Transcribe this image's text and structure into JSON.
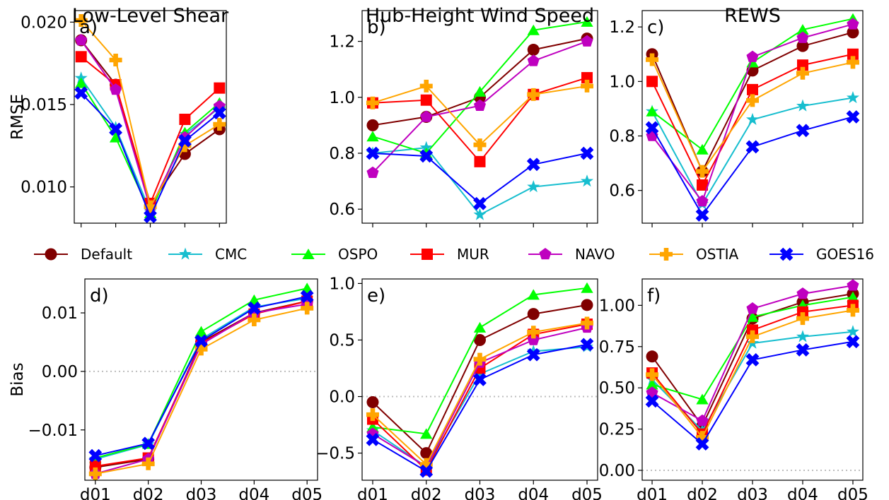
{
  "legend": {
    "placement": "center, between rows",
    "entries": [
      "Default",
      "CMC",
      "OSPO",
      "MUR",
      "NAVO",
      "OSTIA",
      "GOES16"
    ]
  },
  "series_style": [
    {
      "name": "Default",
      "color": "#800000",
      "marker": "circle"
    },
    {
      "name": "CMC",
      "color": "#17becf",
      "marker": "star"
    },
    {
      "name": "OSPO",
      "color": "#00ff00",
      "marker": "triangle"
    },
    {
      "name": "MUR",
      "color": "#ff0000",
      "marker": "square"
    },
    {
      "name": "NAVO",
      "color": "#bf00bf",
      "marker": "pentagon"
    },
    {
      "name": "OSTIA",
      "color": "#ffa500",
      "marker": "plus"
    },
    {
      "name": "GOES16",
      "color": "#0000ff",
      "marker": "x"
    }
  ],
  "chart_data": [
    {
      "id": "a",
      "type": "line",
      "title": "Low-Level Shear",
      "panel_label": "a)",
      "ylabel": "RMSE",
      "xlabel": "",
      "categories": [
        "d01",
        "d02",
        "d03",
        "d04",
        "d05"
      ],
      "ylim": [
        0.0078,
        0.0207
      ],
      "yticks": [
        0.01,
        0.015,
        0.02
      ],
      "ytick_labels": [
        "0.010",
        "0.015",
        "0.020"
      ],
      "show_x_ticklabels": false,
      "zero_line": false,
      "series": [
        {
          "name": "Default",
          "values": [
            0.0189,
            0.0162,
            0.0089,
            0.012,
            0.0135
          ]
        },
        {
          "name": "CMC",
          "values": [
            0.0166,
            0.0136,
            0.0085,
            0.0132,
            0.0148
          ]
        },
        {
          "name": "OSPO",
          "values": [
            0.0163,
            0.013,
            0.0084,
            0.0133,
            0.0151
          ]
        },
        {
          "name": "MUR",
          "values": [
            0.0179,
            0.0162,
            0.009,
            0.0141,
            0.016
          ]
        },
        {
          "name": "NAVO",
          "values": [
            0.0189,
            0.0159,
            0.0087,
            0.013,
            0.0149
          ]
        },
        {
          "name": "OSTIA",
          "values": [
            0.0201,
            0.0177,
            0.0088,
            0.0125,
            0.0138
          ]
        },
        {
          "name": "GOES16",
          "values": [
            0.0157,
            0.0135,
            0.0082,
            0.0128,
            0.0145
          ]
        }
      ]
    },
    {
      "id": "b",
      "type": "line",
      "title": "Hub-Height Wind Speed",
      "panel_label": "b)",
      "ylabel": "",
      "xlabel": "",
      "categories": [
        "d01",
        "d02",
        "d03",
        "d04",
        "d05"
      ],
      "ylim": [
        0.55,
        1.31
      ],
      "yticks": [
        0.6,
        0.8,
        1.0,
        1.2
      ],
      "ytick_labels": [
        "0.6",
        "0.8",
        "1.0",
        "1.2"
      ],
      "show_x_ticklabels": false,
      "zero_line": false,
      "series": [
        {
          "name": "Default",
          "values": [
            0.9,
            0.93,
            1.0,
            1.17,
            1.21
          ]
        },
        {
          "name": "CMC",
          "values": [
            0.8,
            0.82,
            0.58,
            0.68,
            0.7
          ]
        },
        {
          "name": "OSPO",
          "values": [
            0.86,
            0.8,
            1.02,
            1.24,
            1.27
          ]
        },
        {
          "name": "MUR",
          "values": [
            0.98,
            0.99,
            0.77,
            1.01,
            1.07
          ]
        },
        {
          "name": "NAVO",
          "values": [
            0.73,
            0.93,
            0.97,
            1.13,
            1.2
          ]
        },
        {
          "name": "OSTIA",
          "values": [
            0.98,
            1.04,
            0.83,
            1.01,
            1.04
          ]
        },
        {
          "name": "GOES16",
          "values": [
            0.8,
            0.79,
            0.62,
            0.76,
            0.8
          ]
        }
      ]
    },
    {
      "id": "c",
      "type": "line",
      "title": "REWS",
      "panel_label": "c)",
      "ylabel": "",
      "xlabel": "",
      "categories": [
        "d01",
        "d02",
        "d03",
        "d04",
        "d05"
      ],
      "ylim": [
        0.48,
        1.26
      ],
      "yticks": [
        0.6,
        0.8,
        1.0,
        1.2
      ],
      "ytick_labels": [
        "0.6",
        "0.8",
        "1.0",
        "1.2"
      ],
      "show_x_ticklabels": false,
      "zero_line": false,
      "series": [
        {
          "name": "Default",
          "values": [
            1.1,
            0.67,
            1.04,
            1.13,
            1.18
          ]
        },
        {
          "name": "CMC",
          "values": [
            0.89,
            0.55,
            0.86,
            0.91,
            0.94
          ]
        },
        {
          "name": "OSPO",
          "values": [
            0.89,
            0.75,
            1.07,
            1.19,
            1.23
          ]
        },
        {
          "name": "MUR",
          "values": [
            1.0,
            0.62,
            0.97,
            1.06,
            1.1
          ]
        },
        {
          "name": "NAVO",
          "values": [
            0.8,
            0.56,
            1.09,
            1.16,
            1.21
          ]
        },
        {
          "name": "OSTIA",
          "values": [
            1.08,
            0.67,
            0.93,
            1.03,
            1.07
          ]
        },
        {
          "name": "GOES16",
          "values": [
            0.83,
            0.51,
            0.76,
            0.82,
            0.87
          ]
        }
      ]
    },
    {
      "id": "d",
      "type": "line",
      "title": "",
      "panel_label": "d)",
      "ylabel": "Bias",
      "xlabel": "",
      "categories": [
        "d01",
        "d02",
        "d03",
        "d04",
        "d05"
      ],
      "ylim": [
        -0.0186,
        0.0158
      ],
      "yticks": [
        -0.01,
        0.0,
        0.01
      ],
      "ytick_labels": [
        "−0.01",
        "0.00",
        "0.01"
      ],
      "show_x_ticklabels": true,
      "zero_line": true,
      "series": [
        {
          "name": "Default",
          "values": [
            -0.0164,
            -0.015,
            0.005,
            0.01,
            0.012
          ]
        },
        {
          "name": "CMC",
          "values": [
            -0.015,
            -0.0125,
            0.0055,
            0.011,
            0.0125
          ]
        },
        {
          "name": "OSPO",
          "values": [
            -0.0148,
            -0.0124,
            0.0068,
            0.0122,
            0.0142
          ]
        },
        {
          "name": "MUR",
          "values": [
            -0.0162,
            -0.0148,
            0.0048,
            0.0098,
            0.012
          ]
        },
        {
          "name": "NAVO",
          "values": [
            -0.0175,
            -0.015,
            0.0046,
            0.01,
            0.0115
          ]
        },
        {
          "name": "OSTIA",
          "values": [
            -0.0175,
            -0.0158,
            0.0038,
            0.0088,
            0.0108
          ]
        },
        {
          "name": "GOES16",
          "values": [
            -0.0144,
            -0.0123,
            0.0052,
            0.0108,
            0.0128
          ]
        }
      ]
    },
    {
      "id": "e",
      "type": "line",
      "title": "",
      "panel_label": "e)",
      "ylabel": "",
      "xlabel": "",
      "categories": [
        "d01",
        "d02",
        "d03",
        "d04",
        "d05"
      ],
      "ylim": [
        -0.74,
        1.04
      ],
      "yticks": [
        -0.5,
        0.0,
        0.5,
        1.0
      ],
      "ytick_labels": [
        "−0.5",
        "0.0",
        "0.5",
        "1.0"
      ],
      "show_x_ticklabels": true,
      "zero_line": true,
      "series": [
        {
          "name": "Default",
          "values": [
            -0.05,
            -0.5,
            0.5,
            0.73,
            0.81
          ]
        },
        {
          "name": "CMC",
          "values": [
            -0.3,
            -0.62,
            0.2,
            0.4,
            0.44
          ]
        },
        {
          "name": "OSPO",
          "values": [
            -0.27,
            -0.33,
            0.61,
            0.9,
            0.96
          ]
        },
        {
          "name": "MUR",
          "values": [
            -0.2,
            -0.65,
            0.25,
            0.55,
            0.64
          ]
        },
        {
          "name": "NAVO",
          "values": [
            -0.33,
            -0.62,
            0.3,
            0.5,
            0.61
          ]
        },
        {
          "name": "OSTIA",
          "values": [
            -0.16,
            -0.6,
            0.33,
            0.57,
            0.65
          ]
        },
        {
          "name": "GOES16",
          "values": [
            -0.38,
            -0.66,
            0.15,
            0.37,
            0.46
          ]
        }
      ]
    },
    {
      "id": "f",
      "type": "line",
      "title": "",
      "panel_label": "f)",
      "ylabel": "",
      "xlabel": "",
      "categories": [
        "d01",
        "d02",
        "d03",
        "d04",
        "d05"
      ],
      "ylim": [
        -0.06,
        1.16
      ],
      "yticks": [
        0.0,
        0.25,
        0.5,
        0.75,
        1.0
      ],
      "ytick_labels": [
        "0.00",
        "0.25",
        "0.50",
        "0.75",
        "1.00"
      ],
      "show_x_ticklabels": true,
      "zero_line": true,
      "series": [
        {
          "name": "Default",
          "values": [
            0.69,
            0.27,
            0.92,
            1.02,
            1.07
          ]
        },
        {
          "name": "CMC",
          "values": [
            0.55,
            0.24,
            0.77,
            0.81,
            0.84
          ]
        },
        {
          "name": "OSPO",
          "values": [
            0.52,
            0.43,
            0.93,
            1.0,
            1.05
          ]
        },
        {
          "name": "MUR",
          "values": [
            0.59,
            0.22,
            0.85,
            0.96,
            1.0
          ]
        },
        {
          "name": "NAVO",
          "values": [
            0.47,
            0.3,
            0.98,
            1.07,
            1.12
          ]
        },
        {
          "name": "OSTIA",
          "values": [
            0.58,
            0.2,
            0.81,
            0.92,
            0.97
          ]
        },
        {
          "name": "GOES16",
          "values": [
            0.42,
            0.16,
            0.67,
            0.73,
            0.78
          ]
        }
      ]
    }
  ]
}
